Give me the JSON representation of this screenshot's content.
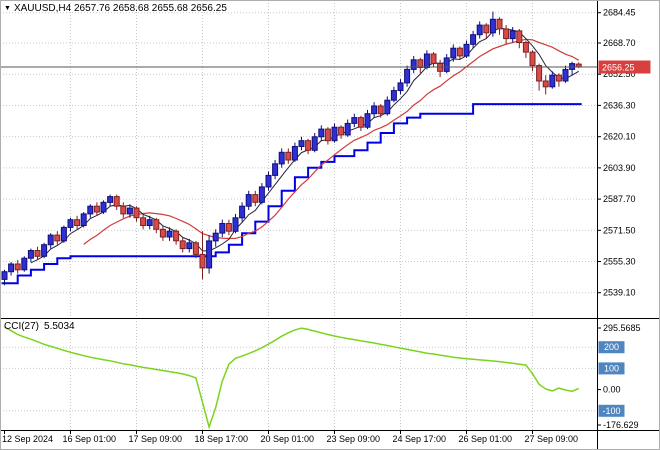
{
  "header": {
    "marker": "▼",
    "title": "XAUUSD,H4 2657.76 2658.68 2655.68 2656.25"
  },
  "indicator_panel": {
    "label": "CCI(27)",
    "value": "5.5034"
  },
  "price_axis": {
    "labels": [
      "2684.45",
      "2668.70",
      "2652.50",
      "2636.30",
      "2620.10",
      "2603.90",
      "2587.70",
      "2571.50",
      "2555.30",
      "2539.10"
    ],
    "current_label": "2656.25"
  },
  "cci_axis": {
    "max_label": "295.5685",
    "zero_label": "0.00",
    "min_label": "-176.629",
    "level_labels": [
      "200",
      "100",
      "-100"
    ]
  },
  "colors": {
    "background": "#ffffff",
    "grid": "#c9c9c9",
    "bull_fill": "#2f2fd3",
    "bull_stroke": "#101078",
    "bear_fill": "#d94b4b",
    "bear_stroke": "#7e1f1f",
    "ma_fast": "#23233c",
    "ma_slow": "#d23b3b",
    "step_line": "#0000e6",
    "cci_line": "#7bd41c",
    "price_badge_bg": "#d84040",
    "level_badge_bg": "#4f86c0",
    "separator": "#000000",
    "bid_line": "#555555"
  },
  "chart_data": [
    {
      "type": "candlestick",
      "symbol": "XAUUSD",
      "timeframe": "H4",
      "title": "XAUUSD,H4",
      "last_ohlc": {
        "open": 2657.76,
        "high": 2658.68,
        "low": 2655.68,
        "close": 2656.25
      },
      "current_price": 2656.25,
      "y_range": [
        2527,
        2690
      ],
      "y_ticks": [
        2684.45,
        2668.7,
        2652.5,
        2636.3,
        2620.1,
        2603.9,
        2587.7,
        2571.5,
        2555.3,
        2539.1
      ],
      "x_tick_indices": [
        0,
        10,
        20,
        30,
        40,
        50,
        60,
        70,
        80
      ],
      "x_tick_labels": [
        "12 Sep 2024",
        "16 Sep 01:00",
        "17 Sep 09:00",
        "18 Sep 17:00",
        "20 Sep 01:00",
        "23 Sep 09:00",
        "24 Sep 17:00",
        "26 Sep 01:00",
        "27 Sep 09:00"
      ],
      "candles": [
        [
          2546,
          2551,
          2543,
          2550
        ],
        [
          2550,
          2555,
          2548,
          2554
        ],
        [
          2554,
          2556,
          2549,
          2551
        ],
        [
          2551,
          2558,
          2550,
          2557
        ],
        [
          2557,
          2562,
          2555,
          2561
        ],
        [
          2561,
          2563,
          2556,
          2558
        ],
        [
          2558,
          2565,
          2557,
          2564
        ],
        [
          2564,
          2570,
          2562,
          2569
        ],
        [
          2569,
          2571,
          2564,
          2566
        ],
        [
          2566,
          2574,
          2565,
          2573
        ],
        [
          2573,
          2578,
          2571,
          2577
        ],
        [
          2577,
          2579,
          2572,
          2574
        ],
        [
          2574,
          2581,
          2573,
          2580
        ],
        [
          2580,
          2585,
          2578,
          2584
        ],
        [
          2584,
          2586,
          2579,
          2581
        ],
        [
          2581,
          2587,
          2580,
          2586
        ],
        [
          2586,
          2590,
          2584,
          2589
        ],
        [
          2589,
          2590,
          2582,
          2584
        ],
        [
          2584,
          2586,
          2578,
          2580
        ],
        [
          2580,
          2585,
          2578,
          2583
        ],
        [
          2583,
          2584,
          2576,
          2578
        ],
        [
          2578,
          2580,
          2572,
          2574
        ],
        [
          2574,
          2579,
          2572,
          2577
        ],
        [
          2577,
          2578,
          2570,
          2572
        ],
        [
          2572,
          2574,
          2566,
          2568
        ],
        [
          2568,
          2573,
          2566,
          2571
        ],
        [
          2571,
          2572,
          2564,
          2566
        ],
        [
          2566,
          2568,
          2560,
          2562
        ],
        [
          2562,
          2567,
          2560,
          2565
        ],
        [
          2565,
          2566,
          2557,
          2559
        ],
        [
          2559,
          2571,
          2546,
          2552
        ],
        [
          2552,
          2569,
          2549,
          2566
        ],
        [
          2566,
          2572,
          2563,
          2570
        ],
        [
          2570,
          2577,
          2568,
          2575
        ],
        [
          2575,
          2577,
          2569,
          2571
        ],
        [
          2571,
          2580,
          2570,
          2578
        ],
        [
          2578,
          2586,
          2576,
          2584
        ],
        [
          2584,
          2592,
          2582,
          2590
        ],
        [
          2590,
          2592,
          2584,
          2586
        ],
        [
          2586,
          2596,
          2585,
          2594
        ],
        [
          2594,
          2602,
          2592,
          2600
        ],
        [
          2600,
          2608,
          2598,
          2606
        ],
        [
          2606,
          2614,
          2604,
          2612
        ],
        [
          2612,
          2614,
          2606,
          2608
        ],
        [
          2608,
          2617,
          2607,
          2615
        ],
        [
          2615,
          2620,
          2613,
          2618
        ],
        [
          2618,
          2619,
          2611,
          2613
        ],
        [
          2613,
          2622,
          2612,
          2620
        ],
        [
          2620,
          2626,
          2618,
          2624
        ],
        [
          2624,
          2625,
          2616,
          2618
        ],
        [
          2618,
          2627,
          2617,
          2625
        ],
        [
          2625,
          2626,
          2619,
          2621
        ],
        [
          2621,
          2629,
          2620,
          2627
        ],
        [
          2627,
          2632,
          2625,
          2630
        ],
        [
          2630,
          2631,
          2623,
          2625
        ],
        [
          2625,
          2634,
          2624,
          2632
        ],
        [
          2632,
          2638,
          2630,
          2636
        ],
        [
          2636,
          2637,
          2630,
          2632
        ],
        [
          2632,
          2641,
          2631,
          2639
        ],
        [
          2639,
          2646,
          2638,
          2644
        ],
        [
          2644,
          2650,
          2642,
          2648
        ],
        [
          2648,
          2657,
          2646,
          2655
        ],
        [
          2655,
          2662,
          2653,
          2660
        ],
        [
          2660,
          2661,
          2653,
          2656
        ],
        [
          2656,
          2665,
          2655,
          2663
        ],
        [
          2663,
          2664,
          2656,
          2658
        ],
        [
          2658,
          2660,
          2651,
          2654
        ],
        [
          2654,
          2663,
          2653,
          2661
        ],
        [
          2661,
          2668,
          2659,
          2666
        ],
        [
          2666,
          2667,
          2660,
          2662
        ],
        [
          2662,
          2670,
          2661,
          2668
        ],
        [
          2668,
          2675,
          2666,
          2673
        ],
        [
          2673,
          2680,
          2671,
          2678
        ],
        [
          2678,
          2679,
          2671,
          2674
        ],
        [
          2674,
          2685,
          2672,
          2681
        ],
        [
          2681,
          2682,
          2673,
          2676
        ],
        [
          2676,
          2678,
          2668,
          2671
        ],
        [
          2671,
          2677,
          2669,
          2675
        ],
        [
          2675,
          2676,
          2666,
          2669
        ],
        [
          2669,
          2670,
          2661,
          2664
        ],
        [
          2664,
          2665,
          2654,
          2657
        ],
        [
          2657,
          2658,
          2644,
          2649
        ],
        [
          2649,
          2652,
          2642,
          2646
        ],
        [
          2646,
          2654,
          2645,
          2652
        ],
        [
          2652,
          2653,
          2646,
          2649
        ],
        [
          2649,
          2657,
          2648,
          2655
        ],
        [
          2655,
          2659,
          2652,
          2658
        ],
        [
          2657.76,
          2658.68,
          2655.68,
          2656.25
        ]
      ],
      "overlays": {
        "step_line": {
          "name": "stepped support line",
          "points": [
            [
              0,
              2544
            ],
            [
              2,
              2548
            ],
            [
              4,
              2551
            ],
            [
              6,
              2554
            ],
            [
              8,
              2557
            ],
            [
              10,
              2558
            ],
            [
              32,
              2560
            ],
            [
              34,
              2564
            ],
            [
              36,
              2570
            ],
            [
              38,
              2576
            ],
            [
              40,
              2584
            ],
            [
              42,
              2592
            ],
            [
              44,
              2599
            ],
            [
              46,
              2604
            ],
            [
              48,
              2607
            ],
            [
              50,
              2610
            ],
            [
              53,
              2613
            ],
            [
              55,
              2617
            ],
            [
              57,
              2622
            ],
            [
              59,
              2627
            ],
            [
              61,
              2630
            ],
            [
              63,
              2632
            ],
            [
              71,
              2637
            ],
            [
              87,
              2637
            ]
          ]
        },
        "ma_fast": {
          "name": "fast moving average",
          "period": 5
        },
        "ma_slow": {
          "name": "slow moving average",
          "period": 13
        }
      }
    },
    {
      "type": "line",
      "title": "CCI(27)",
      "current_value": 5.5034,
      "y_max": 295.5685,
      "y_min": -176.629,
      "levels": [
        200,
        100,
        -100
      ],
      "values": [
        295.57,
        278,
        260,
        248,
        238,
        226,
        214,
        204,
        195,
        185,
        176,
        168,
        160,
        153,
        147,
        141,
        136,
        129,
        122,
        117,
        111,
        105,
        100,
        95,
        90,
        85,
        80,
        74,
        66,
        55,
        -60,
        -176.63,
        -85,
        40,
        120,
        148,
        158,
        170,
        183,
        198,
        215,
        233,
        252,
        268,
        282,
        290,
        284,
        276,
        268,
        260,
        253,
        247,
        241,
        236,
        230,
        225,
        220,
        214,
        208,
        202,
        196,
        190,
        184,
        178,
        172,
        168,
        163,
        158,
        153,
        149,
        146,
        143,
        140,
        138,
        135,
        132,
        128,
        124,
        120,
        116,
        75,
        25,
        3,
        -6,
        7,
        -2,
        -8,
        5.5
      ]
    }
  ]
}
